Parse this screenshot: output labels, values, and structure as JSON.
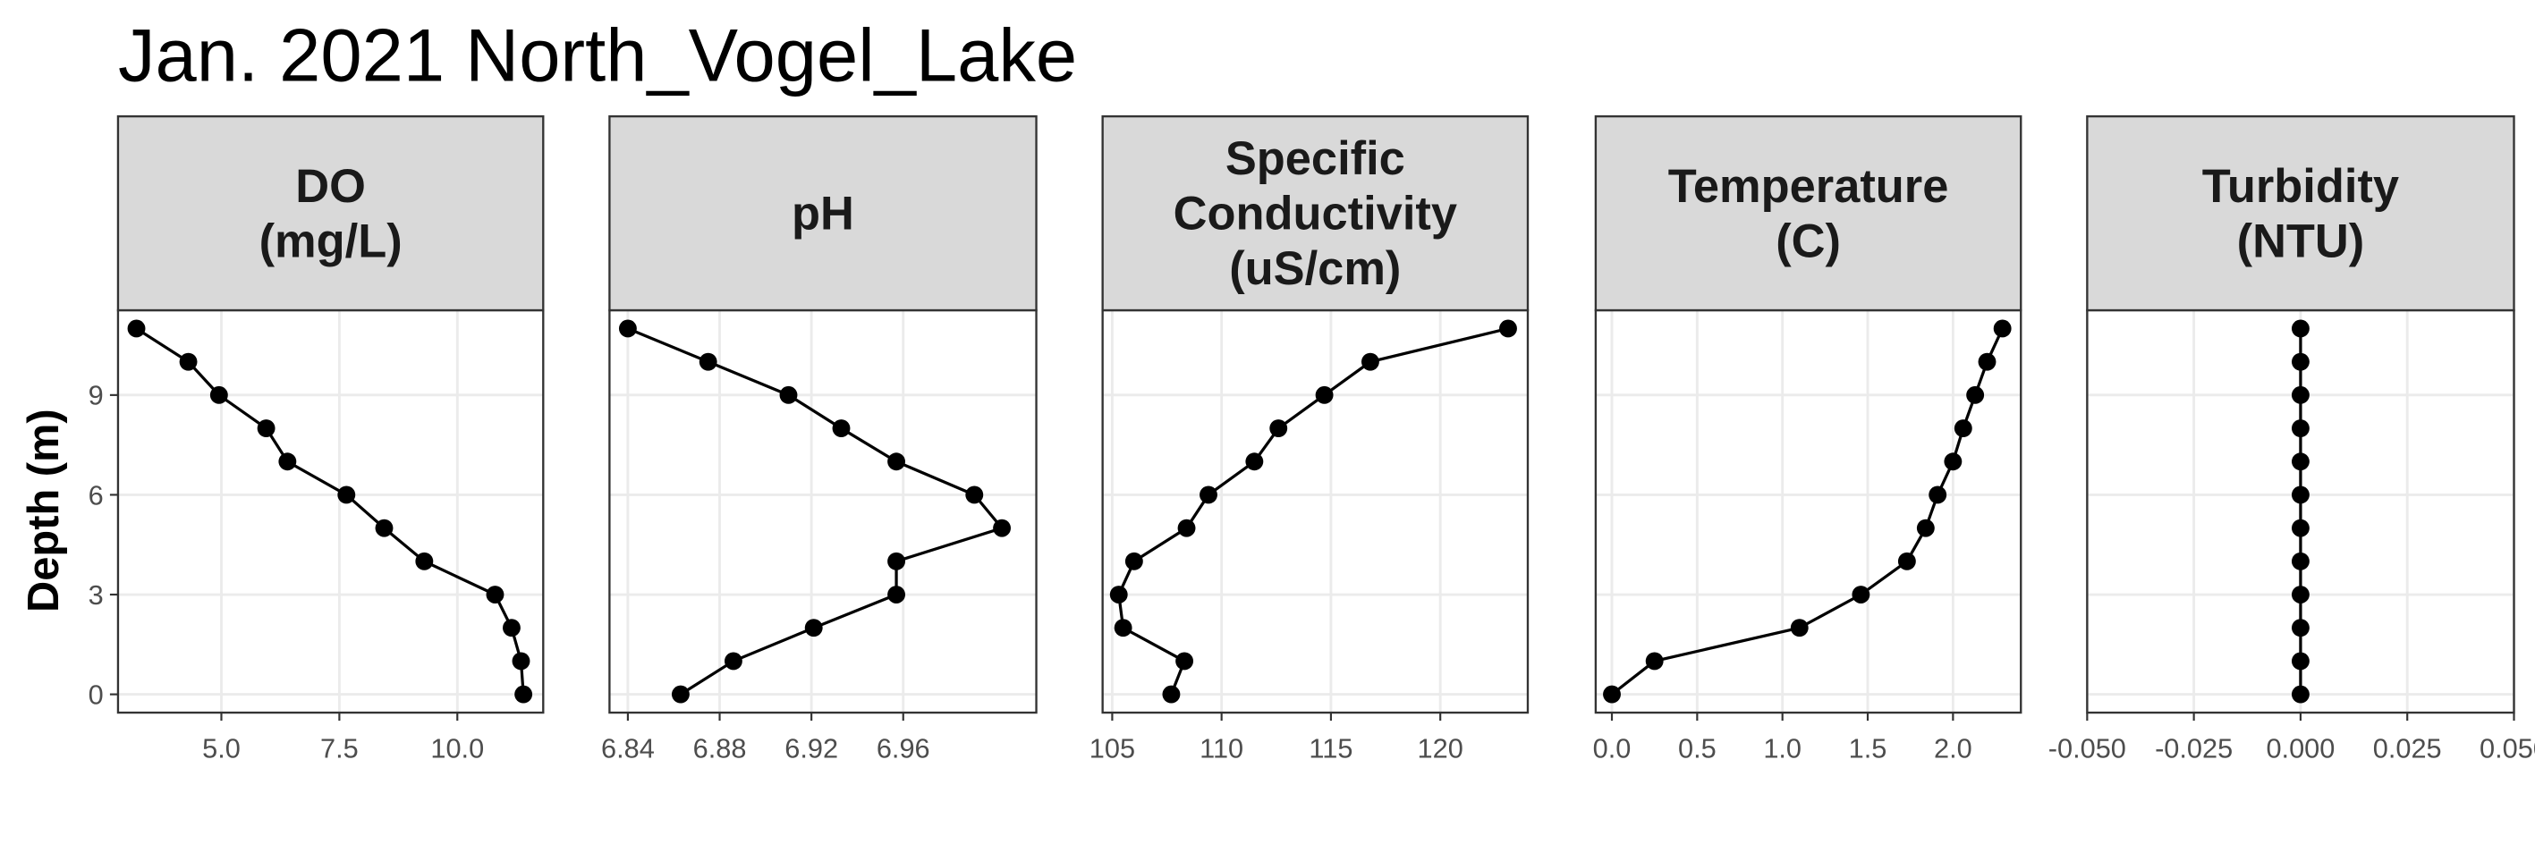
{
  "title": "Jan. 2021 North_Vogel_Lake",
  "y_label": "Depth (m)",
  "chart_data": [
    {
      "type": "line",
      "title": "DO\n(mg/L)",
      "color": "#000000",
      "grid": true,
      "x": [
        11.4,
        11.35,
        11.15,
        10.8,
        9.3,
        8.45,
        7.65,
        6.4,
        5.95,
        4.95,
        4.3,
        3.2
      ],
      "y": [
        0,
        1,
        2,
        3,
        4,
        5,
        6,
        7,
        8,
        9,
        10,
        11
      ],
      "xlim": [
        2.81,
        11.82
      ],
      "xticks": [
        {
          "value": 5,
          "label": "5.0"
        },
        {
          "value": 7.5,
          "label": "7.5"
        },
        {
          "value": 10,
          "label": "10.0"
        }
      ],
      "ylim": [
        11.55,
        -0.55
      ],
      "yticks": [
        0,
        3,
        6,
        9
      ]
    },
    {
      "type": "line",
      "title": "pH",
      "color": "#000000",
      "grid": true,
      "x": [
        6.863,
        6.886,
        6.921,
        6.957,
        6.957,
        7.003,
        6.991,
        6.957,
        6.933,
        6.91,
        6.875,
        6.84
      ],
      "y": [
        0,
        1,
        2,
        3,
        4,
        5,
        6,
        7,
        8,
        9,
        10,
        11
      ],
      "xlim": [
        6.832,
        7.018
      ],
      "xticks": [
        6.84,
        6.88,
        6.92,
        6.96
      ],
      "ylim": [
        11.55,
        -0.55
      ],
      "yticks": [
        0,
        3,
        6,
        9
      ]
    },
    {
      "type": "line",
      "title": "Specific\nConductivity\n(uS/cm)",
      "color": "#000000",
      "grid": true,
      "x": [
        107.7,
        108.3,
        105.5,
        105.3,
        106.0,
        108.4,
        109.4,
        111.5,
        112.6,
        114.7,
        116.8,
        123.1
      ],
      "y": [
        0,
        1,
        2,
        3,
        4,
        5,
        6,
        7,
        8,
        9,
        10,
        11
      ],
      "xlim": [
        104.56,
        124.0
      ],
      "xticks": [
        105,
        110,
        115,
        120
      ],
      "ylim": [
        11.55,
        -0.55
      ],
      "yticks": [
        0,
        3,
        6,
        9
      ]
    },
    {
      "type": "line",
      "title": "Temperature\n(C)",
      "color": "#000000",
      "grid": true,
      "x": [
        0.0,
        0.25,
        1.1,
        1.46,
        1.73,
        1.84,
        1.91,
        2.0,
        2.06,
        2.13,
        2.2,
        2.29
      ],
      "y": [
        0,
        1,
        2,
        3,
        4,
        5,
        6,
        7,
        8,
        9,
        10,
        11
      ],
      "xlim": [
        -0.095,
        2.398
      ],
      "xticks": [
        {
          "value": 0,
          "label": "0.0"
        },
        0.5,
        {
          "value": 1,
          "label": "1.0"
        },
        1.5,
        {
          "value": 2,
          "label": "2.0"
        }
      ],
      "ylim": [
        11.55,
        -0.55
      ],
      "yticks": [
        0,
        3,
        6,
        9
      ]
    },
    {
      "type": "line",
      "title": "Turbidity\n(NTU)",
      "color": "#000000",
      "grid": true,
      "x": [
        0,
        0,
        0,
        0,
        0,
        0,
        0,
        0,
        0,
        0,
        0,
        0
      ],
      "y": [
        0,
        1,
        2,
        3,
        4,
        5,
        6,
        7,
        8,
        9,
        10,
        11
      ],
      "xlim": [
        -0.05,
        0.05
      ],
      "xticks": [
        {
          "value": -0.05,
          "label": "-0.050"
        },
        {
          "value": -0.025,
          "label": "-0.025"
        },
        {
          "value": 0,
          "label": "0.000"
        },
        {
          "value": 0.025,
          "label": "0.025"
        },
        {
          "value": 0.05,
          "label": "0.050"
        }
      ],
      "ylim": [
        11.55,
        -0.55
      ],
      "yticks": [
        0,
        3,
        6,
        9
      ]
    }
  ]
}
